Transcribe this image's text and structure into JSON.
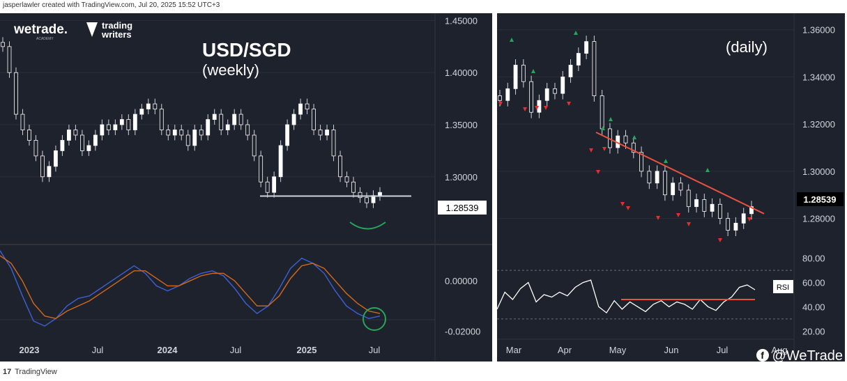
{
  "header": {
    "credit": "jasperlawler created with TradingView.com, Jul 20, 2025 15:52 UTC+3"
  },
  "footer": {
    "logo": "17",
    "brand": "TradingView"
  },
  "watermark": {
    "handle": "@WeTrade",
    "fb_icon": "facebook-icon"
  },
  "left_panel": {
    "logo_wetrade": "wetrade.",
    "logo_wetrade_sub": "ACADEMY",
    "logo_trading_writers_1": "trading",
    "logo_trading_writers_2": "writers",
    "title": "USD/SGD",
    "subtitle": "(weekly)",
    "current_price_label": "1.28539"
  },
  "right_panel": {
    "subtitle": "(daily)",
    "current_price_label": "1.28539",
    "rsi_label": "RSI"
  },
  "chart_data": [
    {
      "type": "candlestick",
      "title": "USD/SGD",
      "subtitle": "(weekly)",
      "x_ticks": [
        "2023",
        "Jul",
        "2024",
        "Jul",
        "2025",
        "Jul"
      ],
      "y_ticks": [
        "1.45000",
        "1.40000",
        "1.35000",
        "1.30000"
      ],
      "ylim": [
        1.235,
        1.457
      ],
      "series": [
        {
          "name": "USD/SGD",
          "close": [
            1.425,
            1.4,
            1.36,
            1.345,
            1.335,
            1.32,
            1.3,
            1.31,
            1.325,
            1.335,
            1.345,
            1.34,
            1.325,
            1.33,
            1.34,
            1.35,
            1.345,
            1.35,
            1.355,
            1.345,
            1.36,
            1.365,
            1.37,
            1.365,
            1.345,
            1.34,
            1.345,
            1.34,
            1.33,
            1.345,
            1.34,
            1.355,
            1.36,
            1.345,
            1.35,
            1.36,
            1.35,
            1.34,
            1.32,
            1.295,
            1.285,
            1.3,
            1.33,
            1.35,
            1.36,
            1.37,
            1.365,
            1.345,
            1.34,
            1.345,
            1.32,
            1.3,
            1.295,
            1.285,
            1.28,
            1.275,
            1.282,
            1.285
          ]
        },
        {
          "name": "Support line",
          "value": 1.2815
        }
      ],
      "last_price": 1.28539,
      "annotations": [
        "green rounded-bottom arc under latest candles"
      ]
    },
    {
      "type": "line",
      "panel": "MACD-style oscillator (weekly)",
      "y_ticks": [
        "0.00000",
        "-0.02000"
      ],
      "ylim": [
        -0.0238,
        0.0142
      ],
      "series": [
        {
          "name": "fast",
          "color": "#3a62d6",
          "values": [
            0.012,
            0.005,
            -0.006,
            -0.016,
            -0.018,
            -0.015,
            -0.01,
            -0.007,
            -0.006,
            -0.003,
            0.0,
            0.003,
            0.006,
            0.003,
            -0.002,
            -0.004,
            -0.002,
            0.001,
            0.003,
            0.004,
            0.002,
            -0.003,
            -0.009,
            -0.013,
            -0.01,
            -0.003,
            0.005,
            0.009,
            0.007,
            0.003,
            -0.004,
            -0.01,
            -0.013,
            -0.015,
            -0.014
          ]
        },
        {
          "name": "signal",
          "color": "#d2691e",
          "values": [
            0.01,
            0.007,
            0.0,
            -0.009,
            -0.014,
            -0.015,
            -0.012,
            -0.01,
            -0.008,
            -0.005,
            -0.002,
            0.001,
            0.004,
            0.004,
            0.001,
            -0.002,
            -0.002,
            0.0,
            0.002,
            0.003,
            0.003,
            0.0,
            -0.005,
            -0.01,
            -0.01,
            -0.006,
            0.001,
            0.006,
            0.007,
            0.005,
            0.0,
            -0.005,
            -0.009,
            -0.012,
            -0.013
          ]
        }
      ],
      "annotations": [
        "green circle around latest crossover"
      ]
    },
    {
      "type": "candlestick",
      "subtitle": "(daily)",
      "x_ticks": [
        "Mar",
        "Apr",
        "May",
        "Jun",
        "Jul",
        "Aug"
      ],
      "y_ticks": [
        "1.36000",
        "1.34000",
        "1.32000",
        "1.30000",
        "1.28000"
      ],
      "ylim": [
        1.266,
        1.367
      ],
      "series": [
        {
          "name": "USD/SGD",
          "close": [
            1.33,
            1.335,
            1.345,
            1.338,
            1.325,
            1.33,
            1.335,
            1.333,
            1.34,
            1.345,
            1.35,
            1.355,
            1.332,
            1.318,
            1.31,
            1.315,
            1.312,
            1.308,
            1.3,
            1.295,
            1.3,
            1.29,
            1.295,
            1.292,
            1.285,
            1.288,
            1.283,
            1.286,
            1.28,
            1.275,
            1.278,
            1.282,
            1.285
          ]
        },
        {
          "name": "Downtrend line",
          "from": 1.3165,
          "to": 1.282
        }
      ],
      "last_price": 1.28539,
      "markers": {
        "up_green": 8,
        "down_red": 15
      }
    },
    {
      "type": "line",
      "panel": "RSI",
      "y_ticks": [
        "80.00",
        "60.00",
        "40.00",
        "20.00"
      ],
      "ylim": [
        15,
        85
      ],
      "levels": [
        70,
        30
      ],
      "series": [
        {
          "name": "RSI",
          "color": "#ffffff",
          "values": [
            38,
            52,
            46,
            55,
            60,
            44,
            50,
            48,
            52,
            49,
            56,
            60,
            62,
            40,
            35,
            45,
            38,
            44,
            40,
            36,
            42,
            45,
            40,
            44,
            42,
            38,
            46,
            40,
            37,
            44,
            48,
            56,
            58,
            54
          ]
        },
        {
          "name": "Support",
          "color": "#e8523f",
          "value": 46
        }
      ]
    }
  ],
  "colors": {
    "panel_bg": "#1e222d",
    "grid": "#2a2e39",
    "up": "#ffffff",
    "down": "#ffffff",
    "trendline": "#e8523f",
    "green_marker": "#26a65b",
    "red_marker": "#e03131"
  }
}
